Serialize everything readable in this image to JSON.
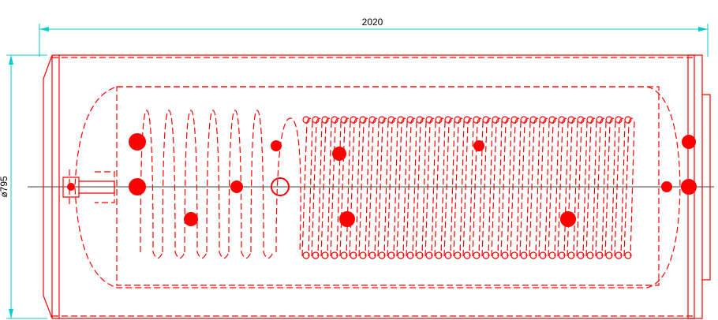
{
  "dimensions": {
    "length": "2020",
    "diameter": "ø795"
  }
}
